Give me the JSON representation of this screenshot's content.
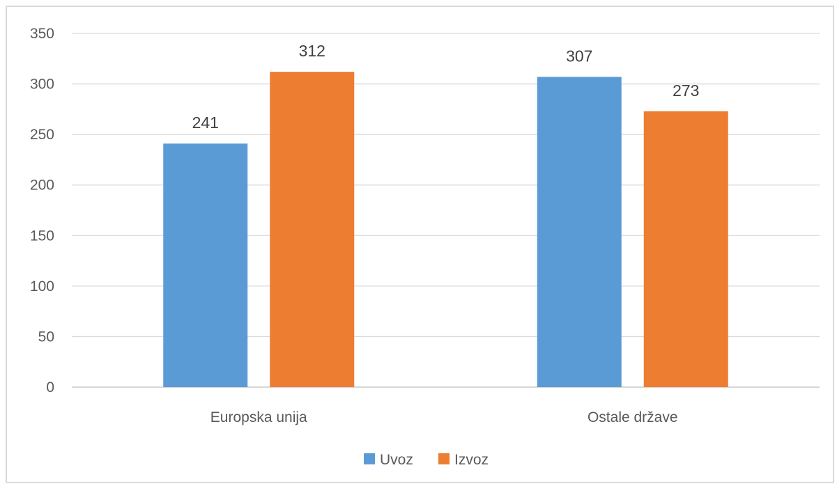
{
  "chart_data": {
    "type": "bar",
    "categories": [
      "Europska unija",
      "Ostale države"
    ],
    "series": [
      {
        "name": "Uvoz",
        "values": [
          241,
          307
        ],
        "color": "#5b9bd5"
      },
      {
        "name": "Izvoz",
        "values": [
          312,
          273
        ],
        "color": "#ed7d31"
      }
    ],
    "ylim": [
      0,
      350
    ],
    "yticks": [
      0,
      50,
      100,
      150,
      200,
      250,
      300,
      350
    ],
    "grid": true,
    "legend": "bottom",
    "data_labels": true
  }
}
